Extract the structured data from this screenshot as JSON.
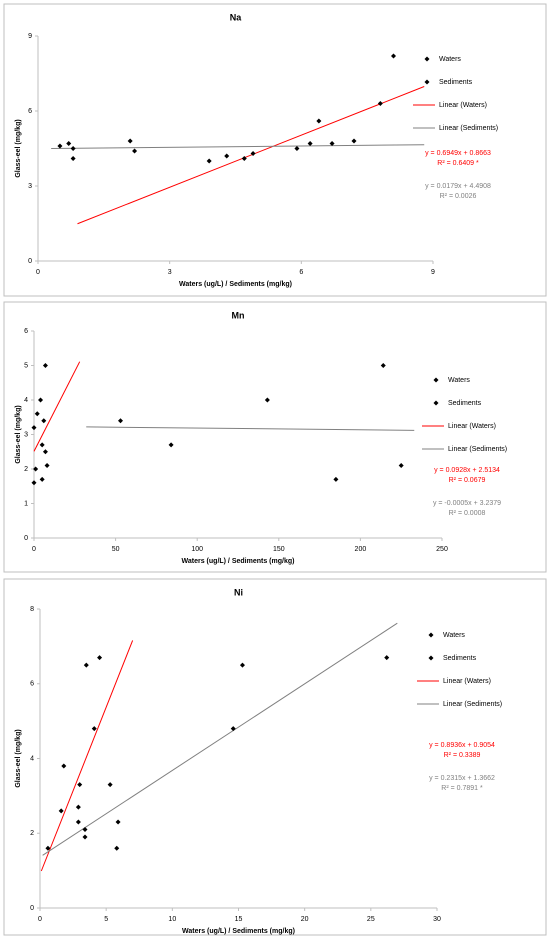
{
  "chart_data": [
    {
      "type": "scatter",
      "title": "Na",
      "xlabel": "Waters (ug/L) / Sediments (mg/kg)",
      "ylabel": "Glass-eel (mg/kg)",
      "xlim": [
        0,
        9
      ],
      "ylim": [
        0,
        9
      ],
      "xticks": [
        0,
        3,
        6,
        9
      ],
      "yticks": [
        0,
        3,
        6,
        9
      ],
      "series": [
        {
          "name": "Waters",
          "color": "#000000",
          "x": [
            3.9,
            4.3,
            4.7,
            6.4,
            7.8,
            8.1,
            0.8,
            4.9
          ],
          "values": [
            4.0,
            4.2,
            4.1,
            5.6,
            6.3,
            8.2,
            4.1,
            4.3
          ]
        },
        {
          "name": "Sediments",
          "color": "#000000",
          "x": [
            0.5,
            0.7,
            0.8,
            2.1,
            2.2,
            5.9,
            6.2,
            6.7,
            7.2
          ],
          "values": [
            4.6,
            4.7,
            4.5,
            4.8,
            4.4,
            4.5,
            4.7,
            4.7,
            4.8
          ]
        }
      ],
      "trendlines": [
        {
          "name": "Linear (Waters)",
          "color": "#ff0000",
          "x": [
            0.9,
            8.8
          ],
          "values": [
            1.49,
            6.98
          ],
          "equation": "y = 0.6949x + 0.8663",
          "r_squared": "R² = 0.6409 *"
        },
        {
          "name": "Linear (Sediments)",
          "color": "#808080",
          "x": [
            0.3,
            8.8
          ],
          "values": [
            4.5,
            4.65
          ],
          "equation": "y = 0.0179x + 4.4908",
          "r_squared": "R² = 0.0026"
        }
      ]
    },
    {
      "type": "scatter",
      "title": "Mn",
      "xlabel": "Waters (ug/L) / Sediments (mg/kg)",
      "ylabel": "Glass-eel (mg/kg)",
      "xlim": [
        0,
        250
      ],
      "ylim": [
        0,
        6
      ],
      "xticks": [
        0,
        50,
        100,
        150,
        200,
        250
      ],
      "yticks": [
        0,
        1,
        2,
        3,
        4,
        5,
        6
      ],
      "series": [
        {
          "name": "Waters",
          "color": "#000000",
          "x": [
            0,
            1,
            0,
            2,
            4,
            5,
            6,
            5,
            7,
            8,
            7
          ],
          "values": [
            1.6,
            2.0,
            3.2,
            3.6,
            4.0,
            2.7,
            3.4,
            1.7,
            2.5,
            2.1,
            5.0
          ]
        },
        {
          "name": "Sediments",
          "color": "#000000",
          "x": [
            53,
            84,
            143,
            185,
            214,
            225
          ],
          "values": [
            3.4,
            2.7,
            4.0,
            1.7,
            5.0,
            2.1
          ]
        }
      ],
      "trendlines": [
        {
          "name": "Linear (Waters)",
          "color": "#ff0000",
          "x": [
            0,
            28
          ],
          "values": [
            2.51,
            5.11
          ],
          "equation": "y = 0.0928x + 2.5134",
          "r_squared": "R² = 0.0679"
        },
        {
          "name": "Linear (Sediments)",
          "color": "#808080",
          "x": [
            32,
            233
          ],
          "values": [
            3.22,
            3.12
          ],
          "equation": "y = -0.0005x + 3.2379",
          "r_squared": "R² = 0.0008"
        }
      ]
    },
    {
      "type": "scatter",
      "title": "Ni",
      "xlabel": "Waters (ug/L) / Sediments (mg/kg)",
      "ylabel": "Glass-eel (mg/kg)",
      "xlim": [
        0,
        30
      ],
      "ylim": [
        0,
        8
      ],
      "xticks": [
        0,
        5,
        10,
        15,
        20,
        25,
        30
      ],
      "yticks": [
        0,
        2,
        4,
        6,
        8
      ],
      "series": [
        {
          "name": "Waters",
          "color": "#000000",
          "x": [
            1.6,
            1.8,
            2.9,
            3.0,
            3.5,
            4.1,
            4.5,
            5.3
          ],
          "values": [
            2.6,
            3.8,
            2.7,
            3.3,
            6.5,
            4.8,
            6.7,
            3.3
          ]
        },
        {
          "name": "Sediments",
          "color": "#000000",
          "x": [
            0.6,
            2.9,
            3.4,
            3.4,
            5.8,
            5.9,
            14.6,
            15.3,
            26.2
          ],
          "values": [
            1.6,
            2.3,
            2.1,
            1.9,
            1.6,
            2.3,
            4.8,
            6.5,
            6.7
          ]
        }
      ],
      "trendlines": [
        {
          "name": "Linear (Waters)",
          "color": "#ff0000",
          "x": [
            0.1,
            7.0
          ],
          "values": [
            0.99,
            7.16
          ],
          "equation": "y = 0.8936x + 0.9054",
          "r_squared": "R² = 0.3389"
        },
        {
          "name": "Linear (Sediments)",
          "color": "#808080",
          "x": [
            0.2,
            27
          ],
          "values": [
            1.41,
            7.62
          ],
          "equation": "y = 0.2315x + 1.3662",
          "r_squared": "R² = 0.7891 *"
        }
      ]
    }
  ]
}
